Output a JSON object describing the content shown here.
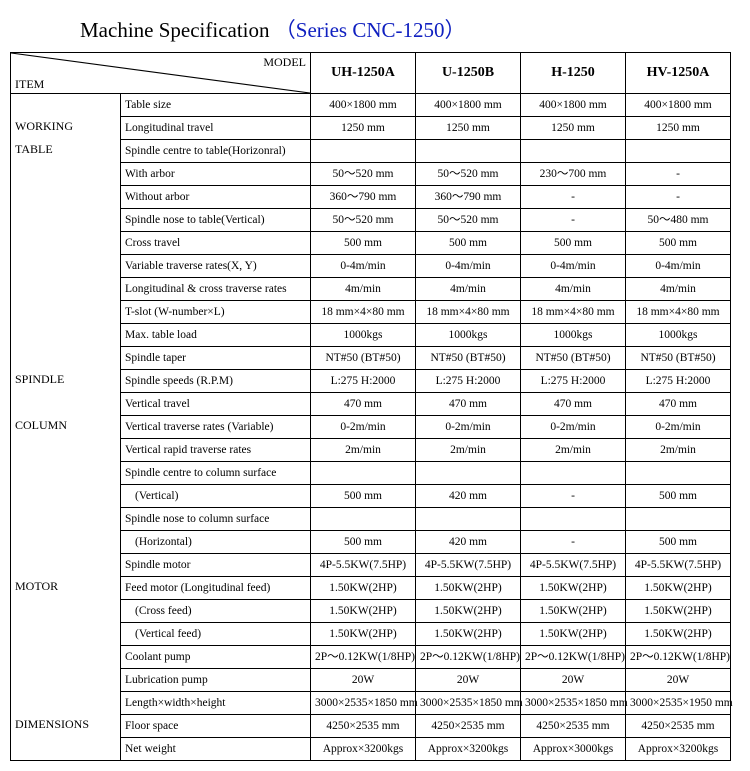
{
  "title_main": "Machine Specification",
  "title_series": "（Series CNC-1250）",
  "header_item": "ITEM",
  "header_model": "MODEL",
  "models": [
    "UH-1250A",
    "U-1250B",
    "H-1250",
    "HV-1250A"
  ],
  "rows": [
    {
      "cat": "",
      "param": "Table size",
      "vals": [
        "400×1800 mm",
        "400×1800 mm",
        "400×1800 mm",
        "400×1800 mm"
      ]
    },
    {
      "cat": "WORKING",
      "param": "Longitudinal travel",
      "vals": [
        "1250 mm",
        "1250 mm",
        "1250 mm",
        "1250 mm"
      ]
    },
    {
      "cat": "TABLE",
      "param": "Spindle centre to table(Horizonral)",
      "vals": [
        "",
        "",
        "",
        ""
      ]
    },
    {
      "cat": "",
      "param": "With arbor",
      "vals": [
        "50～520 mm",
        "50～520 mm",
        "230～700 mm",
        "-"
      ]
    },
    {
      "cat": "",
      "param": "Without arbor",
      "vals": [
        "360～790 mm",
        "360～790 mm",
        "-",
        "-"
      ]
    },
    {
      "cat": "",
      "param": "Spindle nose to table(Vertical)",
      "vals": [
        "50～520 mm",
        "50～520 mm",
        "-",
        "50～480 mm"
      ]
    },
    {
      "cat": "",
      "param": "Cross travel",
      "vals": [
        "500 mm",
        "500 mm",
        "500 mm",
        "500 mm"
      ]
    },
    {
      "cat": "",
      "param": "Variable traverse rates(X, Y)",
      "vals": [
        "0-4m/min",
        "0-4m/min",
        "0-4m/min",
        "0-4m/min"
      ]
    },
    {
      "cat": "",
      "param": "Longitudinal & cross traverse rates",
      "vals": [
        "4m/min",
        "4m/min",
        "4m/min",
        "4m/min"
      ]
    },
    {
      "cat": "",
      "param": "T-slot (W-number×L)",
      "vals": [
        "18 mm×4×80 mm",
        "18 mm×4×80 mm",
        "18 mm×4×80 mm",
        "18 mm×4×80 mm"
      ]
    },
    {
      "cat": "",
      "param": "Max. table load",
      "vals": [
        "1000kgs",
        "1000kgs",
        "1000kgs",
        "1000kgs"
      ]
    },
    {
      "cat": "",
      "param": "Spindle taper",
      "vals": [
        "NT#50 (BT#50)",
        "NT#50 (BT#50)",
        "NT#50 (BT#50)",
        "NT#50 (BT#50)"
      ]
    },
    {
      "cat": "SPINDLE",
      "param": "Spindle speeds (R.P.M)",
      "vals": [
        "L:275   H:2000",
        "L:275   H:2000",
        "L:275   H:2000",
        "L:275   H:2000"
      ]
    },
    {
      "cat": "",
      "param": "Vertical travel",
      "vals": [
        "470 mm",
        "470 mm",
        "470 mm",
        "470 mm"
      ]
    },
    {
      "cat": "COLUMN",
      "param": "Vertical traverse rates (Variable)",
      "vals": [
        "0-2m/min",
        "0-2m/min",
        "0-2m/min",
        "0-2m/min"
      ]
    },
    {
      "cat": "",
      "param": "Vertical rapid traverse rates",
      "vals": [
        "2m/min",
        "2m/min",
        "2m/min",
        "2m/min"
      ]
    },
    {
      "cat": "",
      "param": "Spindle centre to column surface",
      "vals": [
        "",
        "",
        "",
        ""
      ]
    },
    {
      "cat": "",
      "param": "(Vertical)",
      "indent": true,
      "vals": [
        "500 mm",
        "420 mm",
        "-",
        "500 mm"
      ]
    },
    {
      "cat": "",
      "param": "Spindle nose to column surface",
      "vals": [
        "",
        "",
        "",
        ""
      ]
    },
    {
      "cat": "",
      "param": "(Horizontal)",
      "indent": true,
      "vals": [
        "500 mm",
        "420 mm",
        "-",
        "500 mm"
      ]
    },
    {
      "cat": "",
      "param": "Spindle motor",
      "vals": [
        "4P-5.5KW(7.5HP)",
        "4P-5.5KW(7.5HP)",
        "4P-5.5KW(7.5HP)",
        "4P-5.5KW(7.5HP)"
      ]
    },
    {
      "cat": "MOTOR",
      "param": "Feed motor    (Longitudinal feed)",
      "vals": [
        "1.50KW(2HP)",
        "1.50KW(2HP)",
        "1.50KW(2HP)",
        "1.50KW(2HP)"
      ]
    },
    {
      "cat": "",
      "param": "(Cross feed)",
      "indent": true,
      "vals": [
        "1.50KW(2HP)",
        "1.50KW(2HP)",
        "1.50KW(2HP)",
        "1.50KW(2HP)"
      ]
    },
    {
      "cat": "",
      "param": "(Vertical feed)",
      "indent": true,
      "vals": [
        "1.50KW(2HP)",
        "1.50KW(2HP)",
        "1.50KW(2HP)",
        "1.50KW(2HP)"
      ]
    },
    {
      "cat": "",
      "param": "Coolant pump",
      "vals": [
        "2P～0.12KW(1/8HP)",
        "2P～0.12KW(1/8HP)",
        "2P～0.12KW(1/8HP)",
        "2P～0.12KW(1/8HP)"
      ]
    },
    {
      "cat": "",
      "param": "Lubrication pump",
      "vals": [
        "20W",
        "20W",
        "20W",
        "20W"
      ]
    },
    {
      "cat": "",
      "param": "Length×width×height",
      "vals": [
        "3000×2535×1850 mm",
        "3000×2535×1850 mm",
        "3000×2535×1850 mm",
        "3000×2535×1950 mm"
      ]
    },
    {
      "cat": "DIMENSIONS",
      "param": "Floor space",
      "vals": [
        "4250×2535 mm",
        "4250×2535 mm",
        "4250×2535 mm",
        "4250×2535 mm"
      ]
    },
    {
      "cat": "",
      "param": "Net weight",
      "vals": [
        "Approx×3200kgs",
        "Approx×3200kgs",
        "Approx×3000kgs",
        "Approx×3200kgs"
      ]
    }
  ]
}
